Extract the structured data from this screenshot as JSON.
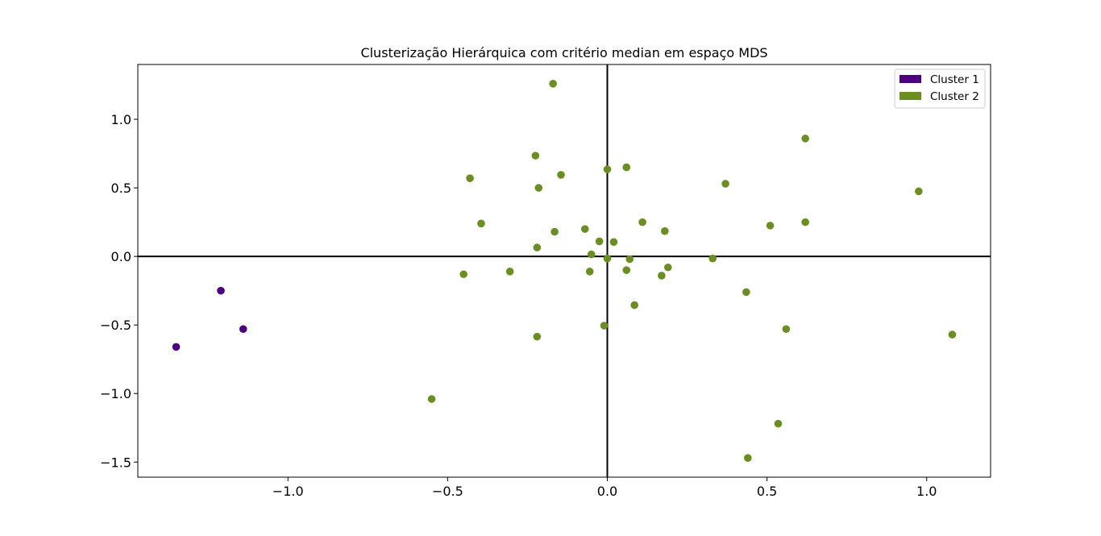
{
  "chart_data": {
    "type": "scatter",
    "title": "Clusterização Hierárquica com critério median em espaço MDS",
    "xlabel": "",
    "ylabel": "",
    "xlim": [
      -1.47,
      1.2
    ],
    "ylim": [
      -1.61,
      1.4
    ],
    "xticks": [
      -1.0,
      -0.5,
      0.0,
      0.5,
      1.0
    ],
    "xtick_labels": [
      "−1.0",
      "−0.5",
      "0.0",
      "0.5",
      "1.0"
    ],
    "yticks": [
      1.0,
      0.5,
      0.0,
      -0.5,
      -1.0,
      -1.5
    ],
    "ytick_labels": [
      "1.0",
      "0.5",
      "0.0",
      "−0.5",
      "−1.0",
      "−1.5"
    ],
    "grid": false,
    "reference_lines": {
      "x": 0,
      "y": 0
    },
    "legend_position": "upper-right",
    "series": [
      {
        "name": "Cluster 1",
        "color": "#4b0082",
        "points": [
          [
            -1.21,
            -0.25
          ],
          [
            -1.14,
            -0.53
          ],
          [
            -1.35,
            -0.66
          ]
        ]
      },
      {
        "name": "Cluster 2",
        "color": "#6b8e23",
        "points": [
          [
            -0.17,
            1.26
          ],
          [
            0.62,
            0.86
          ],
          [
            -0.225,
            0.735
          ],
          [
            0.0,
            0.635
          ],
          [
            0.06,
            0.65
          ],
          [
            -0.145,
            0.595
          ],
          [
            -0.43,
            0.57
          ],
          [
            -0.215,
            0.5
          ],
          [
            0.37,
            0.53
          ],
          [
            0.975,
            0.475
          ],
          [
            -0.395,
            0.24
          ],
          [
            0.11,
            0.25
          ],
          [
            0.62,
            0.25
          ],
          [
            0.51,
            0.225
          ],
          [
            -0.07,
            0.2
          ],
          [
            -0.165,
            0.18
          ],
          [
            0.18,
            0.185
          ],
          [
            -0.025,
            0.11
          ],
          [
            0.02,
            0.105
          ],
          [
            -0.22,
            0.065
          ],
          [
            -0.05,
            0.015
          ],
          [
            0.0,
            -0.015
          ],
          [
            0.07,
            -0.02
          ],
          [
            0.33,
            -0.015
          ],
          [
            0.19,
            -0.08
          ],
          [
            0.06,
            -0.1
          ],
          [
            -0.055,
            -0.11
          ],
          [
            -0.305,
            -0.11
          ],
          [
            -0.45,
            -0.13
          ],
          [
            0.17,
            -0.14
          ],
          [
            0.435,
            -0.26
          ],
          [
            0.085,
            -0.355
          ],
          [
            -0.01,
            -0.505
          ],
          [
            0.56,
            -0.53
          ],
          [
            -0.22,
            -0.585
          ],
          [
            1.08,
            -0.57
          ],
          [
            -0.55,
            -1.04
          ],
          [
            0.535,
            -1.22
          ],
          [
            0.44,
            -1.47
          ]
        ]
      }
    ]
  }
}
